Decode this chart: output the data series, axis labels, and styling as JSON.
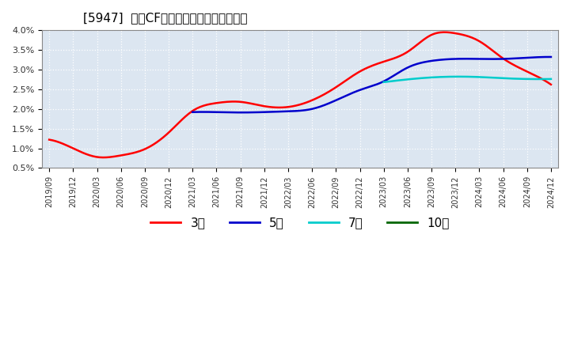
{
  "title": "[5947]  営業CFマージンの標準偏差の推移",
  "background_color": "#ffffff",
  "plot_bg_color": "#dce6f1",
  "grid_color": "#ffffff",
  "ylim": [
    0.005,
    0.04
  ],
  "yticks": [
    0.005,
    0.01,
    0.015,
    0.02,
    0.025,
    0.03,
    0.035,
    0.04
  ],
  "ytick_labels": [
    "0.5%",
    "1.0%",
    "1.5%",
    "2.0%",
    "2.5%",
    "3.0%",
    "3.5%",
    "4.0%"
  ],
  "xtick_labels": [
    "2019/09",
    "2019/12",
    "2020/03",
    "2020/06",
    "2020/09",
    "2020/12",
    "2021/03",
    "2021/06",
    "2021/09",
    "2021/12",
    "2022/03",
    "2022/06",
    "2022/09",
    "2022/12",
    "2023/03",
    "2023/06",
    "2023/09",
    "2023/12",
    "2024/03",
    "2024/06",
    "2024/09",
    "2024/12"
  ],
  "series_3": {
    "color": "#ff0000",
    "label": "3年",
    "data_x": [
      0,
      1,
      2,
      3,
      4,
      5,
      6,
      7,
      8,
      9,
      10,
      11,
      12,
      13,
      14,
      15,
      16,
      17,
      18,
      19,
      20,
      21
    ],
    "data_y": [
      0.0122,
      0.01,
      0.0078,
      0.0082,
      0.0098,
      0.014,
      0.0195,
      0.0215,
      0.0218,
      0.0207,
      0.0205,
      0.0222,
      0.0255,
      0.0295,
      0.032,
      0.0345,
      0.0388,
      0.0392,
      0.0372,
      0.0328,
      0.0295,
      0.0262
    ]
  },
  "series_5": {
    "color": "#0000cc",
    "label": "5年",
    "data_x": [
      6,
      7,
      8,
      9,
      10,
      11,
      12,
      13,
      14,
      15,
      16,
      17,
      18,
      19,
      20,
      21
    ],
    "data_y": [
      0.0192,
      0.0192,
      0.0191,
      0.0192,
      0.0194,
      0.02,
      0.0222,
      0.0248,
      0.027,
      0.0305,
      0.0322,
      0.0327,
      0.0327,
      0.0327,
      0.033,
      0.0332
    ]
  },
  "series_7": {
    "color": "#00cccc",
    "label": "7年",
    "data_x": [
      14,
      15,
      16,
      17,
      18,
      19,
      20,
      21
    ],
    "data_y": [
      0.0268,
      0.0275,
      0.028,
      0.0282,
      0.0281,
      0.0278,
      0.0276,
      0.0276
    ]
  },
  "series_10": {
    "color": "#006600",
    "label": "10年",
    "data_x": [],
    "data_y": []
  },
  "legend_entries": [
    "3年",
    "5年",
    "7年",
    "10年"
  ],
  "legend_colors": [
    "#ff0000",
    "#0000cc",
    "#00cccc",
    "#006600"
  ]
}
